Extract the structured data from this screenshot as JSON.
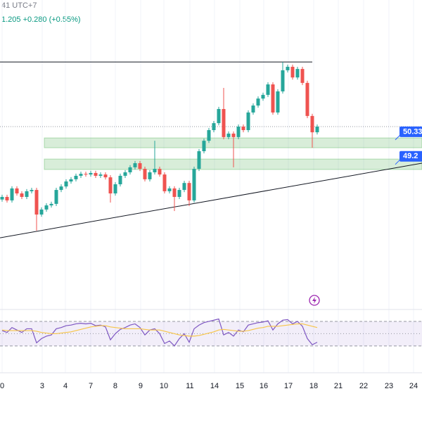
{
  "chart_data": {
    "type": "candlestick",
    "header": {
      "time": "41 UTC+7",
      "quote": "1.205 +0.280 (+0.55%)"
    },
    "up_color": "#26a69a",
    "down_color": "#ef5350",
    "grid": true,
    "xlim": [
      -0.43,
      85.29
    ],
    "xticks": [
      {
        "value": 0,
        "label": "0"
      },
      {
        "value": 8.14,
        "label": "3"
      },
      {
        "value": 12.86,
        "label": "4"
      },
      {
        "value": 18,
        "label": "7"
      },
      {
        "value": 23,
        "label": "8"
      },
      {
        "value": 28.14,
        "label": "9"
      },
      {
        "value": 32.86,
        "label": "10"
      },
      {
        "value": 38.14,
        "label": "11"
      },
      {
        "value": 43.14,
        "label": "14"
      },
      {
        "value": 48.29,
        "label": "15"
      },
      {
        "value": 53.14,
        "label": "16"
      },
      {
        "value": 58.14,
        "label": "17"
      },
      {
        "value": 63.29,
        "label": "18"
      },
      {
        "value": 68.29,
        "label": "21"
      },
      {
        "value": 73.43,
        "label": "22"
      },
      {
        "value": 78.57,
        "label": "23"
      },
      {
        "value": 83.57,
        "label": "24"
      }
    ],
    "ylim": [
      42.47,
      56.37
    ],
    "open": [
      47.2,
      47.32,
      47.16,
      47.71,
      47.48,
      47.32,
      47.58,
      47.64,
      46.51,
      46.74,
      46.93,
      47.0,
      47.64,
      47.8,
      48.03,
      48.13,
      48.29,
      48.38,
      48.35,
      48.42,
      48.29,
      48.35,
      48.22,
      47.48,
      47.9,
      48.29,
      48.45,
      48.68,
      48.87,
      48.61,
      48.13,
      48.45,
      48.61,
      48.35,
      47.58,
      47.71,
      47.32,
      47.64,
      47.96,
      47.16,
      48.61,
      49.42,
      49.9,
      50.39,
      50.71,
      51.36,
      50.07,
      50.23,
      50.07,
      50.55,
      50.39,
      51.2,
      51.52,
      51.84,
      52.01,
      52.49,
      51.2,
      52.17,
      53.14,
      53.3,
      52.81,
      53.2,
      52.56,
      51.04,
      50.29
    ],
    "high": [
      47.42,
      47.42,
      47.81,
      47.81,
      47.58,
      47.68,
      47.74,
      47.74,
      46.84,
      47.03,
      47.1,
      47.74,
      47.9,
      48.13,
      48.23,
      48.39,
      48.48,
      48.48,
      48.52,
      48.52,
      48.45,
      48.45,
      48.32,
      48.0,
      48.39,
      48.55,
      48.78,
      48.97,
      48.97,
      48.71,
      48.55,
      49.9,
      48.71,
      48.45,
      47.81,
      47.81,
      47.74,
      48.06,
      48.06,
      48.71,
      49.52,
      50.0,
      50.49,
      50.81,
      51.46,
      52.33,
      50.33,
      50.33,
      50.65,
      50.65,
      51.3,
      51.62,
      51.94,
      52.11,
      52.59,
      52.59,
      52.27,
      53.52,
      53.4,
      53.4,
      53.3,
      53.3,
      52.66,
      51.14,
      50.65
    ],
    "low": [
      47.1,
      47.06,
      47.06,
      47.38,
      47.22,
      47.22,
      47.48,
      45.77,
      46.41,
      46.64,
      46.83,
      46.9,
      47.54,
      47.7,
      47.93,
      48.03,
      48.19,
      48.25,
      48.25,
      48.19,
      48.19,
      48.12,
      47.06,
      47.38,
      47.8,
      48.19,
      48.35,
      48.58,
      48.51,
      48.03,
      48.03,
      48.35,
      48.25,
      47.48,
      47.48,
      46.67,
      47.22,
      47.54,
      46.9,
      47.06,
      48.51,
      49.32,
      49.8,
      50.29,
      50.61,
      49.97,
      49.97,
      48.68,
      49.97,
      50.29,
      50.29,
      51.1,
      51.42,
      51.74,
      51.91,
      51.1,
      51.1,
      52.07,
      53.04,
      52.71,
      52.71,
      52.46,
      50.94,
      49.58,
      50.19
    ],
    "close": [
      47.32,
      47.16,
      47.71,
      47.48,
      47.32,
      47.58,
      47.64,
      46.51,
      46.74,
      46.93,
      47.0,
      47.64,
      47.8,
      48.03,
      48.13,
      48.29,
      48.38,
      48.35,
      48.42,
      48.29,
      48.35,
      48.22,
      47.48,
      47.9,
      48.29,
      48.45,
      48.68,
      48.87,
      48.61,
      48.13,
      48.45,
      48.61,
      48.35,
      47.58,
      47.71,
      47.32,
      47.64,
      47.96,
      47.16,
      48.61,
      49.42,
      49.9,
      50.39,
      50.71,
      51.36,
      50.07,
      50.23,
      50.07,
      50.55,
      50.39,
      51.2,
      51.52,
      51.84,
      52.01,
      52.49,
      51.2,
      52.17,
      53.14,
      53.3,
      52.81,
      53.2,
      52.56,
      51.04,
      50.29,
      50.55
    ],
    "resistance": {
      "y": 53.52,
      "x": [
        -0.43,
        63
      ]
    },
    "trendline": {
      "x": [
        -0.43,
        85.29
      ],
      "y": [
        45.44,
        48.87
      ]
    },
    "zones": [
      {
        "top": 50.03,
        "bottom": 49.58,
        "x0": 8.57
      },
      {
        "top": 49.06,
        "bottom": 48.58,
        "x0": 8.57
      }
    ],
    "annotations": [
      {
        "value": 50.33,
        "label": "50.33"
      },
      {
        "value": 49.2,
        "label": "49.2"
      }
    ],
    "rsi": {
      "ylim": [
        -8,
        78
      ],
      "levels": [
        70,
        50,
        30
      ],
      "series": [
        {
          "name": "RSI",
          "color": "#7e57c2",
          "values": [
            55,
            52,
            60,
            56,
            52,
            58,
            58,
            35,
            42,
            46,
            48,
            58,
            60,
            63,
            64,
            66,
            67,
            66,
            67,
            63,
            64,
            61,
            40,
            50,
            57,
            60,
            64,
            66,
            60,
            48,
            56,
            58,
            50,
            34,
            38,
            30,
            42,
            50,
            36,
            58,
            64,
            68,
            70,
            72,
            74,
            48,
            52,
            46,
            56,
            53,
            64,
            66,
            68,
            69,
            71,
            56,
            66,
            72,
            73,
            66,
            70,
            62,
            42,
            32,
            36
          ]
        },
        {
          "name": "MA",
          "color": "#f7c548",
          "values": [
            56,
            55,
            55,
            55,
            55,
            55,
            55,
            54,
            52,
            51,
            50,
            50,
            51,
            52,
            53,
            55,
            57,
            59,
            61,
            62,
            63,
            63,
            61,
            60,
            59,
            58,
            58,
            58,
            58,
            57,
            56,
            56,
            56,
            54,
            52,
            50,
            48,
            47,
            46,
            46,
            47,
            49,
            51,
            53,
            56,
            57,
            56,
            55,
            54,
            54,
            55,
            57,
            59,
            60,
            62,
            62,
            62,
            63,
            64,
            65,
            66,
            66,
            64,
            62,
            60
          ]
        }
      ]
    }
  }
}
